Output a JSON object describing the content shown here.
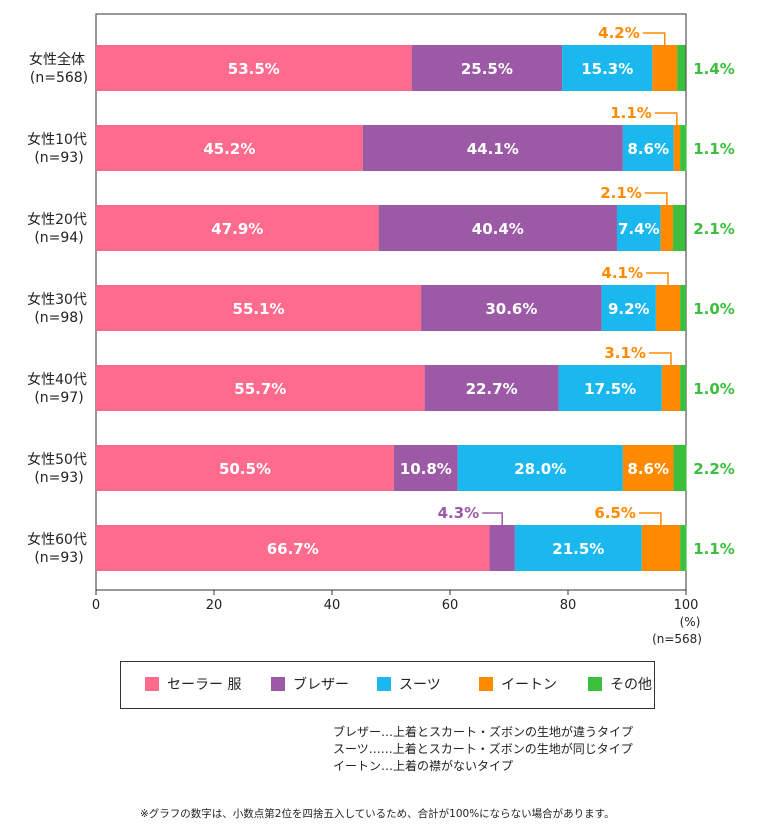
{
  "chart_data": {
    "type": "bar",
    "orientation": "horizontal",
    "stacked": true,
    "categories": [
      {
        "label": "女性全体",
        "n": "(n=568)"
      },
      {
        "label": "女性10代",
        "n": "(n=93)"
      },
      {
        "label": "女性20代",
        "n": "(n=94)"
      },
      {
        "label": "女性30代",
        "n": "(n=98)"
      },
      {
        "label": "女性40代",
        "n": "(n=97)"
      },
      {
        "label": "女性50代",
        "n": "(n=93)"
      },
      {
        "label": "女性60代",
        "n": "(n=93)"
      }
    ],
    "series": [
      {
        "name": "セーラー 服",
        "color": "#ff6b8d",
        "values": [
          53.5,
          45.2,
          47.9,
          55.1,
          55.7,
          50.5,
          66.7
        ]
      },
      {
        "name": "ブレザー",
        "color": "#9b59a6",
        "values": [
          25.5,
          44.1,
          40.4,
          30.6,
          22.7,
          10.8,
          4.3
        ]
      },
      {
        "name": "スーツ",
        "color": "#1ab8ee",
        "values": [
          15.3,
          8.6,
          7.4,
          9.2,
          17.5,
          28.0,
          21.5
        ]
      },
      {
        "name": "イートン",
        "color": "#ff8a00",
        "values": [
          4.2,
          1.1,
          2.1,
          4.1,
          3.1,
          8.6,
          6.5
        ]
      },
      {
        "name": "その他",
        "color": "#3cbf3c",
        "values": [
          1.4,
          1.1,
          2.1,
          1.0,
          1.0,
          2.2,
          1.1
        ]
      }
    ],
    "x_ticks": [
      0,
      20,
      40,
      60,
      80,
      100
    ],
    "xlim": [
      0,
      100
    ],
    "unit_label": "(%)",
    "axis_note": "(n=568)",
    "legend_position": "bottom"
  },
  "definitions": [
    "ブレザー…上着とスカート・ズボンの生地が違うタイプ",
    "スーツ……上着とスカート・ズボンの生地が同じタイプ",
    "イートン…上着の襟がないタイプ"
  ],
  "footnote": "※グラフの数字は、小数点第2位を四捨五入しているため、合計が100%にならない場合があります。"
}
